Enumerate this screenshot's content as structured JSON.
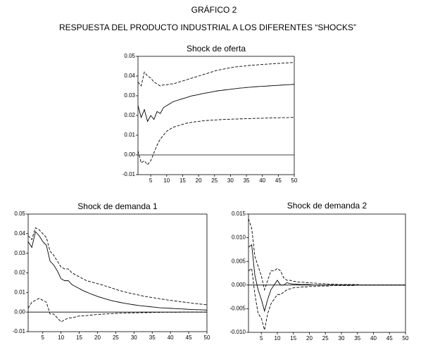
{
  "figure": {
    "title": "GRÁFICO 2",
    "subtitle": "RESPUESTA DEL PRODUCTO INDUSTRIAL A LOS DIFERENTES “SHOCKS”"
  },
  "chart_data": [
    {
      "type": "line",
      "title": "Shock de oferta",
      "x": [
        1,
        2,
        3,
        4,
        5,
        6,
        7,
        8,
        9,
        10,
        11,
        12,
        13,
        14,
        15,
        16,
        17,
        18,
        19,
        20,
        21,
        22,
        23,
        24,
        25,
        26,
        27,
        28,
        29,
        30,
        31,
        32,
        33,
        34,
        35,
        36,
        37,
        38,
        39,
        40,
        41,
        42,
        43,
        44,
        45,
        46,
        47,
        48,
        49,
        50
      ],
      "xlim": [
        1,
        50
      ],
      "xticks": [
        5,
        10,
        15,
        20,
        25,
        30,
        35,
        40,
        45,
        50
      ],
      "ylim": [
        -0.01,
        0.05
      ],
      "yticks": [
        -0.01,
        {
          "value": 0,
          "label": "0.00"
        },
        0.01,
        0.02,
        0.03,
        0.04,
        0.05
      ],
      "series": [
        {
          "color": "#000000",
          "dash": false,
          "values": [
            0.025,
            0.019,
            0.023,
            0.017,
            0.02,
            0.018,
            0.022,
            0.021,
            0.024,
            0.025,
            0.026,
            0.027,
            0.0275,
            0.028,
            0.0285,
            0.029,
            0.0295,
            0.03,
            0.0303,
            0.0306,
            0.031,
            0.0313,
            0.0316,
            0.0319,
            0.0322,
            0.0325,
            0.0327,
            0.0329,
            0.0331,
            0.0333,
            0.0335,
            0.0337,
            0.0339,
            0.034,
            0.0342,
            0.0343,
            0.0345,
            0.0346,
            0.0347,
            0.0348,
            0.0349,
            0.035,
            0.0351,
            0.0352,
            0.0353,
            0.0354,
            0.0355,
            0.0356,
            0.0357,
            0.0358
          ]
        },
        {
          "color": "#000000",
          "dash": true,
          "values": [
            0.037,
            0.035,
            0.042,
            0.04,
            0.039,
            0.037,
            0.036,
            0.035,
            0.0355,
            0.0355,
            0.036,
            0.036,
            0.0365,
            0.037,
            0.0375,
            0.038,
            0.0385,
            0.039,
            0.0395,
            0.04,
            0.0405,
            0.041,
            0.0415,
            0.042,
            0.0425,
            0.043,
            0.0433,
            0.0436,
            0.0439,
            0.0442,
            0.0445,
            0.0447,
            0.0449,
            0.045,
            0.0452,
            0.0454,
            0.0455,
            0.0456,
            0.0458,
            0.0459,
            0.046,
            0.0461,
            0.0462,
            0.0463,
            0.0464,
            0.0465,
            0.0466,
            0.0467,
            0.0468,
            0.0469
          ]
        },
        {
          "color": "#000000",
          "dash": true,
          "values": [
            0.002,
            -0.004,
            -0.003,
            -0.005,
            -0.003,
            0.001,
            0.005,
            0.008,
            0.01,
            0.012,
            0.013,
            0.014,
            0.0145,
            0.015,
            0.0155,
            0.016,
            0.0163,
            0.0166,
            0.0168,
            0.017,
            0.0172,
            0.0174,
            0.0175,
            0.0176,
            0.0177,
            0.0178,
            0.0179,
            0.018,
            0.018,
            0.0181,
            0.0182,
            0.0182,
            0.0183,
            0.0183,
            0.0184,
            0.0184,
            0.0185,
            0.0185,
            0.0186,
            0.0186,
            0.0187,
            0.0187,
            0.0188,
            0.0188,
            0.0188,
            0.0189,
            0.0189,
            0.0189,
            0.019,
            0.019
          ]
        }
      ]
    },
    {
      "type": "line",
      "title": "Shock de demanda 1",
      "x": [
        1,
        2,
        3,
        4,
        5,
        6,
        7,
        8,
        9,
        10,
        11,
        12,
        13,
        14,
        15,
        16,
        17,
        18,
        19,
        20,
        21,
        22,
        23,
        24,
        25,
        26,
        27,
        28,
        29,
        30,
        31,
        32,
        33,
        34,
        35,
        36,
        37,
        38,
        39,
        40,
        41,
        42,
        43,
        44,
        45,
        46,
        47,
        48,
        49,
        50
      ],
      "xlim": [
        1,
        50
      ],
      "xticks": [
        5,
        10,
        15,
        20,
        25,
        30,
        35,
        40,
        45,
        50
      ],
      "ylim": [
        -0.01,
        0.05
      ],
      "yticks": [
        -0.01,
        {
          "value": 0,
          "label": "0.00"
        },
        0.01,
        0.02,
        0.03,
        0.04,
        0.05
      ],
      "series": [
        {
          "color": "#000000",
          "dash": false,
          "values": [
            0.036,
            0.033,
            0.041,
            0.039,
            0.036,
            0.034,
            0.026,
            0.024,
            0.021,
            0.017,
            0.016,
            0.016,
            0.014,
            0.013,
            0.012,
            0.011,
            0.0102,
            0.0094,
            0.0087,
            0.008,
            0.0074,
            0.0068,
            0.0063,
            0.0058,
            0.0054,
            0.005,
            0.0046,
            0.0043,
            0.004,
            0.0037,
            0.0034,
            0.0032,
            0.003,
            0.0028,
            0.0026,
            0.0024,
            0.0022,
            0.0021,
            0.002,
            0.0019,
            0.0018,
            0.0017,
            0.0016,
            0.0015,
            0.0014,
            0.0013,
            0.0012,
            0.0012,
            0.0011,
            0.001
          ]
        },
        {
          "color": "#000000",
          "dash": true,
          "values": [
            0.039,
            0.037,
            0.043,
            0.042,
            0.04,
            0.038,
            0.031,
            0.029,
            0.026,
            0.023,
            0.022,
            0.022,
            0.02,
            0.019,
            0.018,
            0.017,
            0.016,
            0.0155,
            0.015,
            0.0145,
            0.014,
            0.0134,
            0.0128,
            0.0122,
            0.0116,
            0.011,
            0.0105,
            0.01,
            0.0096,
            0.0092,
            0.0088,
            0.0084,
            0.008,
            0.0077,
            0.0074,
            0.0071,
            0.0068,
            0.0065,
            0.0062,
            0.006,
            0.0057,
            0.0055,
            0.0052,
            0.005,
            0.0048,
            0.0045,
            0.0043,
            0.0041,
            0.0039,
            0.0037
          ]
        },
        {
          "color": "#000000",
          "dash": true,
          "values": [
            0.002,
            0.005,
            0.006,
            0.007,
            0.006,
            0.005,
            -0.001,
            -0.001,
            -0.003,
            -0.005,
            -0.004,
            -0.003,
            -0.003,
            -0.0025,
            -0.002,
            -0.002,
            -0.0018,
            -0.0016,
            -0.0014,
            -0.0012,
            -0.0011,
            -0.001,
            -0.0009,
            -0.0008,
            -0.0007,
            -0.0006,
            -0.0006,
            -0.0005,
            -0.0005,
            -0.0004,
            -0.0004,
            -0.0003,
            -0.0003,
            -0.0003,
            -0.0002,
            -0.0002,
            -0.0002,
            -0.0001,
            -0.0001,
            -0.0001,
            -0.0001,
            -0.0001,
            0,
            0,
            0,
            0,
            0,
            0,
            0,
            0
          ]
        }
      ]
    },
    {
      "type": "line",
      "title": "Shock de demanda 2",
      "x": [
        1,
        2,
        3,
        4,
        5,
        6,
        7,
        8,
        9,
        10,
        11,
        12,
        13,
        14,
        15,
        16,
        17,
        18,
        19,
        20,
        21,
        22,
        23,
        24,
        25,
        26,
        27,
        28,
        29,
        30,
        31,
        32,
        33,
        34,
        35,
        36,
        37,
        38,
        39,
        40,
        41,
        42,
        43,
        44,
        45,
        46,
        47,
        48,
        49,
        50
      ],
      "xlim": [
        1,
        50
      ],
      "xticks": [
        5,
        10,
        15,
        20,
        25,
        30,
        35,
        40,
        45,
        50
      ],
      "ylim": [
        -0.01,
        0.015
      ],
      "yticks": [
        {
          "value": -0.01,
          "label": "-0.010"
        },
        -0.005,
        {
          "value": 0,
          "label": "0.000"
        },
        0.005,
        {
          "value": 0.01,
          "label": "0.010"
        },
        0.015
      ],
      "series": [
        {
          "color": "#000000",
          "dash": false,
          "values": [
            0.008,
            0.0085,
            0.002,
            -0.001,
            -0.003,
            -0.0055,
            -0.003,
            -0.001,
            0,
            0.001,
            0,
            0,
            0.0005,
            0.0003,
            0.0002,
            0.0002,
            0.0001,
            0.0001,
            0.0001,
            0.0001,
            0,
            0,
            0,
            0,
            0,
            0,
            0,
            0,
            0,
            0,
            0,
            0,
            0,
            0,
            0,
            0,
            0,
            0,
            0,
            0,
            0,
            0,
            0,
            0,
            0,
            0,
            0,
            0,
            0,
            0
          ]
        },
        {
          "color": "#000000",
          "dash": true,
          "values": [
            0.014,
            0.012,
            0.006,
            0.004,
            0.002,
            -0.001,
            0.001,
            0.003,
            0.003,
            0.0035,
            0.003,
            0.0015,
            0.001,
            0.001,
            0.0008,
            0.0007,
            0.0006,
            0.0006,
            0.0005,
            0.0005,
            0.0004,
            0.0004,
            0.0003,
            0.0003,
            0.0003,
            0.0002,
            0.0002,
            0.0002,
            0.0001,
            0.0001,
            0.0001,
            0.0001,
            0.0001,
            0.0001,
            0.0001,
            0,
            0,
            0,
            0,
            0,
            0,
            0,
            0,
            0,
            0,
            0,
            0,
            0,
            0,
            0
          ]
        },
        {
          "color": "#000000",
          "dash": true,
          "values": [
            0.003,
            0.0035,
            -0.002,
            -0.006,
            -0.007,
            -0.0095,
            -0.006,
            -0.004,
            -0.003,
            -0.002,
            -0.002,
            -0.0015,
            -0.001,
            -0.0008,
            -0.0006,
            -0.0005,
            -0.0005,
            -0.0004,
            -0.0004,
            -0.0003,
            -0.0003,
            -0.0003,
            -0.0002,
            -0.0002,
            -0.0002,
            -0.0002,
            -0.0001,
            -0.0001,
            -0.0001,
            -0.0001,
            -0.0001,
            -0.0001,
            -0.0001,
            -0.0001,
            0,
            0,
            0,
            0,
            0,
            0,
            0,
            0,
            0,
            0,
            0,
            0,
            0,
            0,
            0,
            0
          ]
        }
      ]
    }
  ]
}
